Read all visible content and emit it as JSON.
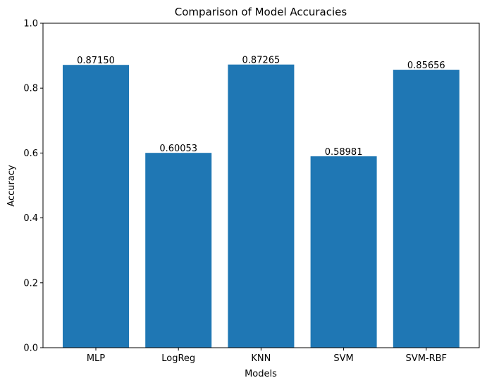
{
  "chart_data": {
    "type": "bar",
    "title": "Comparison of Model Accuracies",
    "xlabel": "Models",
    "ylabel": "Accuracy",
    "categories": [
      "MLP",
      "LogReg",
      "KNN",
      "SVM",
      "SVM-RBF"
    ],
    "values": [
      0.8715,
      0.60053,
      0.87265,
      0.58981,
      0.85656
    ],
    "value_labels": [
      "0.87150",
      "0.60053",
      "0.87265",
      "0.58981",
      "0.85656"
    ],
    "ylim": [
      0,
      1.0
    ],
    "yticks": [
      "0.0",
      "0.2",
      "0.4",
      "0.6",
      "0.8",
      "1.0"
    ],
    "ytick_values": [
      0,
      0.2,
      0.4,
      0.6,
      0.8,
      1.0
    ],
    "bar_color": "#1f77b4",
    "grid": false,
    "legend": false
  }
}
